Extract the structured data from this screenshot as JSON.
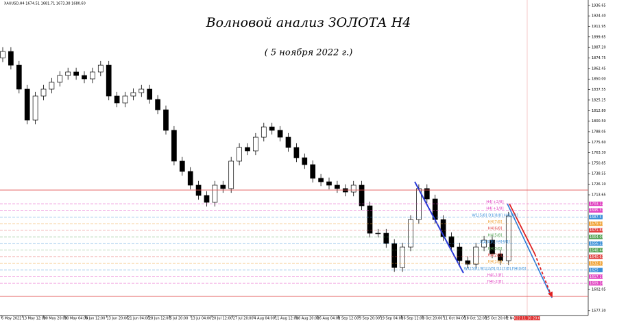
{
  "chart_data": {
    "type": "candlestick",
    "header": "XAUUSD,H4  1674.51 1681.71 1673.38 1680.60",
    "title": "Волновой анализ ЗОЛОТА Н4",
    "subtitle": "( 5 ноября 2022 г.)",
    "ylim": [
      1571.5,
      1943.1
    ],
    "yticks": [
      {
        "value": 1936.65,
        "label": "1936.65"
      },
      {
        "value": 1924.4,
        "label": "1924.40"
      },
      {
        "value": 1911.95,
        "label": "1911.95"
      },
      {
        "value": 1899.65,
        "label": "1899.65"
      },
      {
        "value": 1887.2,
        "label": "1887.20"
      },
      {
        "value": 1874.75,
        "label": "1874.75"
      },
      {
        "value": 1862.45,
        "label": "1862.45"
      },
      {
        "value": 1850,
        "label": "1850.00"
      },
      {
        "value": 1837.55,
        "label": "1837.55"
      },
      {
        "value": 1825.25,
        "label": "1825.25"
      },
      {
        "value": 1812.8,
        "label": "1812.80"
      },
      {
        "value": 1800.5,
        "label": "1800.50"
      },
      {
        "value": 1788.05,
        "label": "1788.05"
      },
      {
        "value": 1775.6,
        "label": "1775.60"
      },
      {
        "value": 1763.3,
        "label": "1763.30"
      },
      {
        "value": 1750.85,
        "label": "1750.85"
      },
      {
        "value": 1738.55,
        "label": "1738.55"
      },
      {
        "value": 1726.1,
        "label": "1726.10"
      },
      {
        "value": 1713.65,
        "label": "1713.65"
      },
      {
        "value": 1602.05,
        "label": "1602.05"
      },
      {
        "value": 1577.3,
        "label": "1577.30"
      }
    ],
    "xlabels": [
      "6 May 2022",
      "13 May 12:00",
      "20 May 20:00",
      "30 May 04:00",
      "6 Jun 12:00",
      "13 Jun 20:00",
      "21 Jun 04:00",
      "28 Jun 12:00",
      "5 Jul 20:00",
      "13 Jul 04:00",
      "20 Jul 12:00",
      "27 Jul 20:00",
      "4 Aug 04:00",
      "11 Aug 12:00",
      "18 Aug 20:00",
      "26 Aug 04:00",
      "2 Sep 12:00",
      "9 Sep 20:00",
      "19 Sep 04:00",
      "26 Sep 12:00",
      "3 Oct 20:00",
      "11 Oct 04:00",
      "18 Oct 12:00",
      "25 Oct 20:00",
      "2 Nov 04:00"
    ],
    "marker_time": "2022.11.10 20:00",
    "up_color": "#000000",
    "down_color": "#000000",
    "open": [
      1875.0,
      1882.5,
      1866.3,
      1838.1,
      1801.7,
      1830.0,
      1838.1,
      1846.2,
      1854.2,
      1858.3,
      1854.2,
      1850.2,
      1858.3,
      1866.3,
      1830.0,
      1821.9,
      1830.0,
      1834.0,
      1838.1,
      1826.0,
      1813.8,
      1789.6,
      1753.3,
      1741.2,
      1725.0,
      1712.9,
      1704.8,
      1725.0,
      1721.0,
      1753.3,
      1769.4,
      1765.4,
      1781.5,
      1793.6,
      1789.6,
      1781.5,
      1769.4,
      1757.3,
      1749.2,
      1733.1,
      1729.0,
      1725.0,
      1721.0,
      1716.9,
      1725.0,
      1700.7,
      1668.4,
      1668.4,
      1656.3,
      1628.0,
      1652.2,
      1684.5,
      1721.0,
      1708.8,
      1684.5,
      1664.4,
      1652.2,
      1636.1,
      1632.0,
      1652.2,
      1660.3,
      1644.1,
      1636.1
    ],
    "high": [
      1887.5,
      1887.5,
      1871.3,
      1843.1,
      1835.0,
      1843.1,
      1851.2,
      1859.2,
      1863.3,
      1863.3,
      1859.2,
      1863.3,
      1871.3,
      1871.3,
      1835.0,
      1835.0,
      1839.0,
      1843.1,
      1843.1,
      1831.0,
      1818.8,
      1794.6,
      1758.3,
      1746.2,
      1730.0,
      1717.9,
      1730.0,
      1730.0,
      1758.3,
      1774.4,
      1774.4,
      1786.5,
      1798.6,
      1798.6,
      1794.6,
      1786.5,
      1774.4,
      1762.3,
      1754.2,
      1738.1,
      1734.0,
      1730.0,
      1726.0,
      1730.0,
      1730.0,
      1705.7,
      1673.4,
      1673.4,
      1661.3,
      1657.2,
      1689.5,
      1726.0,
      1726.0,
      1713.8,
      1689.5,
      1669.4,
      1657.2,
      1641.1,
      1657.2,
      1665.3,
      1665.3,
      1649.1,
      1693.6
    ],
    "low": [
      1870.0,
      1861.3,
      1833.1,
      1796.7,
      1796.7,
      1825.0,
      1833.1,
      1841.2,
      1849.2,
      1849.2,
      1845.2,
      1845.2,
      1853.3,
      1825.0,
      1816.9,
      1816.9,
      1825.0,
      1829.0,
      1821.0,
      1808.8,
      1784.6,
      1748.3,
      1736.2,
      1720.0,
      1707.9,
      1699.8,
      1699.8,
      1716.0,
      1716.0,
      1748.3,
      1760.4,
      1760.4,
      1776.5,
      1784.6,
      1776.5,
      1764.4,
      1752.3,
      1744.2,
      1728.1,
      1724.0,
      1720.0,
      1716.0,
      1711.9,
      1711.9,
      1695.7,
      1663.4,
      1663.4,
      1651.3,
      1623.0,
      1623.0,
      1647.2,
      1679.5,
      1703.8,
      1679.5,
      1659.4,
      1647.2,
      1631.1,
      1627.0,
      1627.0,
      1647.2,
      1639.1,
      1631.1,
      1631.1
    ],
    "close": [
      1882.5,
      1866.3,
      1838.1,
      1801.7,
      1830.0,
      1838.1,
      1846.2,
      1854.2,
      1858.3,
      1854.2,
      1850.2,
      1858.3,
      1866.3,
      1830.0,
      1821.9,
      1830.0,
      1834.0,
      1838.1,
      1826.0,
      1813.8,
      1789.6,
      1753.3,
      1741.2,
      1725.0,
      1712.9,
      1704.8,
      1725.0,
      1721.0,
      1753.3,
      1769.4,
      1765.4,
      1781.5,
      1793.6,
      1789.6,
      1781.5,
      1769.4,
      1757.3,
      1749.2,
      1733.1,
      1729.0,
      1725.0,
      1721.0,
      1716.9,
      1725.0,
      1700.7,
      1668.4,
      1668.4,
      1656.3,
      1628.0,
      1652.2,
      1684.5,
      1721.0,
      1708.8,
      1684.5,
      1664.4,
      1652.2,
      1636.1,
      1632.0,
      1652.2,
      1660.3,
      1644.1,
      1636.1,
      1688.6
    ],
    "levels": [
      {
        "name": "H4[+2/8]",
        "value": 1703.12,
        "color": "#e040c0"
      },
      {
        "name": "H4[+1/8]",
        "value": 1695.31,
        "color": "#e040c0"
      },
      {
        "name": "W1[5/8] D1[8/8] H4[8/8]",
        "value": 1687.5,
        "color": "#3a8fd8"
      },
      {
        "name": "H4[7/8]",
        "value": 1679.69,
        "color": "#f0a030"
      },
      {
        "name": "H4[6/8]",
        "value": 1671.88,
        "color": "#e04040"
      },
      {
        "name": "H4[5/8]",
        "value": 1664.06,
        "color": "#50a050"
      },
      {
        "name": "D1[6/8] H4[4/8]",
        "value": 1656.25,
        "color": "#3a8fd8"
      },
      {
        "name": "H4[3/8]",
        "value": 1648.44,
        "color": "#50a050"
      },
      {
        "name": "H4[2/8]",
        "value": 1640.63,
        "color": "#e04040"
      },
      {
        "name": "H4[1/8]",
        "value": 1632.81,
        "color": "#f0a030"
      },
      {
        "name": "W1[3/8] W1[2/8] D1[7/8] H4[0/8]",
        "value": 1625.0,
        "color": "#3a8fd8"
      },
      {
        "name": "H4[-1/8]",
        "value": 1617.19,
        "color": "#e040c0"
      },
      {
        "name": "H4[-2/8]",
        "value": 1609.38,
        "color": "#e040c0"
      }
    ],
    "hlines": [
      {
        "value": 1719.3,
        "color": "#e05050"
      },
      {
        "value": 1594.0,
        "color": "#e05050"
      }
    ]
  }
}
